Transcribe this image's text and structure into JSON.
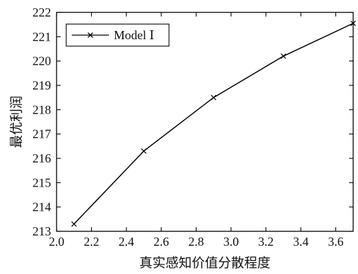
{
  "chart_data": {
    "type": "line",
    "title": "",
    "xlabel": "真实感知价值分散程度",
    "ylabel": "最优利润",
    "xlim": [
      2.0,
      3.7
    ],
    "ylim": [
      213,
      222
    ],
    "x_ticks": [
      2.0,
      2.2,
      2.4,
      2.6,
      2.8,
      3.0,
      3.2,
      3.4,
      3.6
    ],
    "x_tick_labels": [
      "2.0",
      "2.2",
      "2.4",
      "2.6",
      "2.8",
      "3.0",
      "3.2",
      "3.4",
      "3.6"
    ],
    "y_ticks": [
      213,
      214,
      215,
      216,
      217,
      218,
      219,
      220,
      221,
      222
    ],
    "y_tick_labels": [
      "213",
      "214",
      "215",
      "216",
      "217",
      "218",
      "219",
      "220",
      "221",
      "222"
    ],
    "grid": false,
    "legend_position": "top-left",
    "series": [
      {
        "name": "Model Ⅰ",
        "marker": "x",
        "color": "#000000",
        "x": [
          2.1,
          2.5,
          2.9,
          3.3,
          3.7
        ],
        "y": [
          213.3,
          216.3,
          218.5,
          220.2,
          221.55
        ]
      }
    ]
  }
}
